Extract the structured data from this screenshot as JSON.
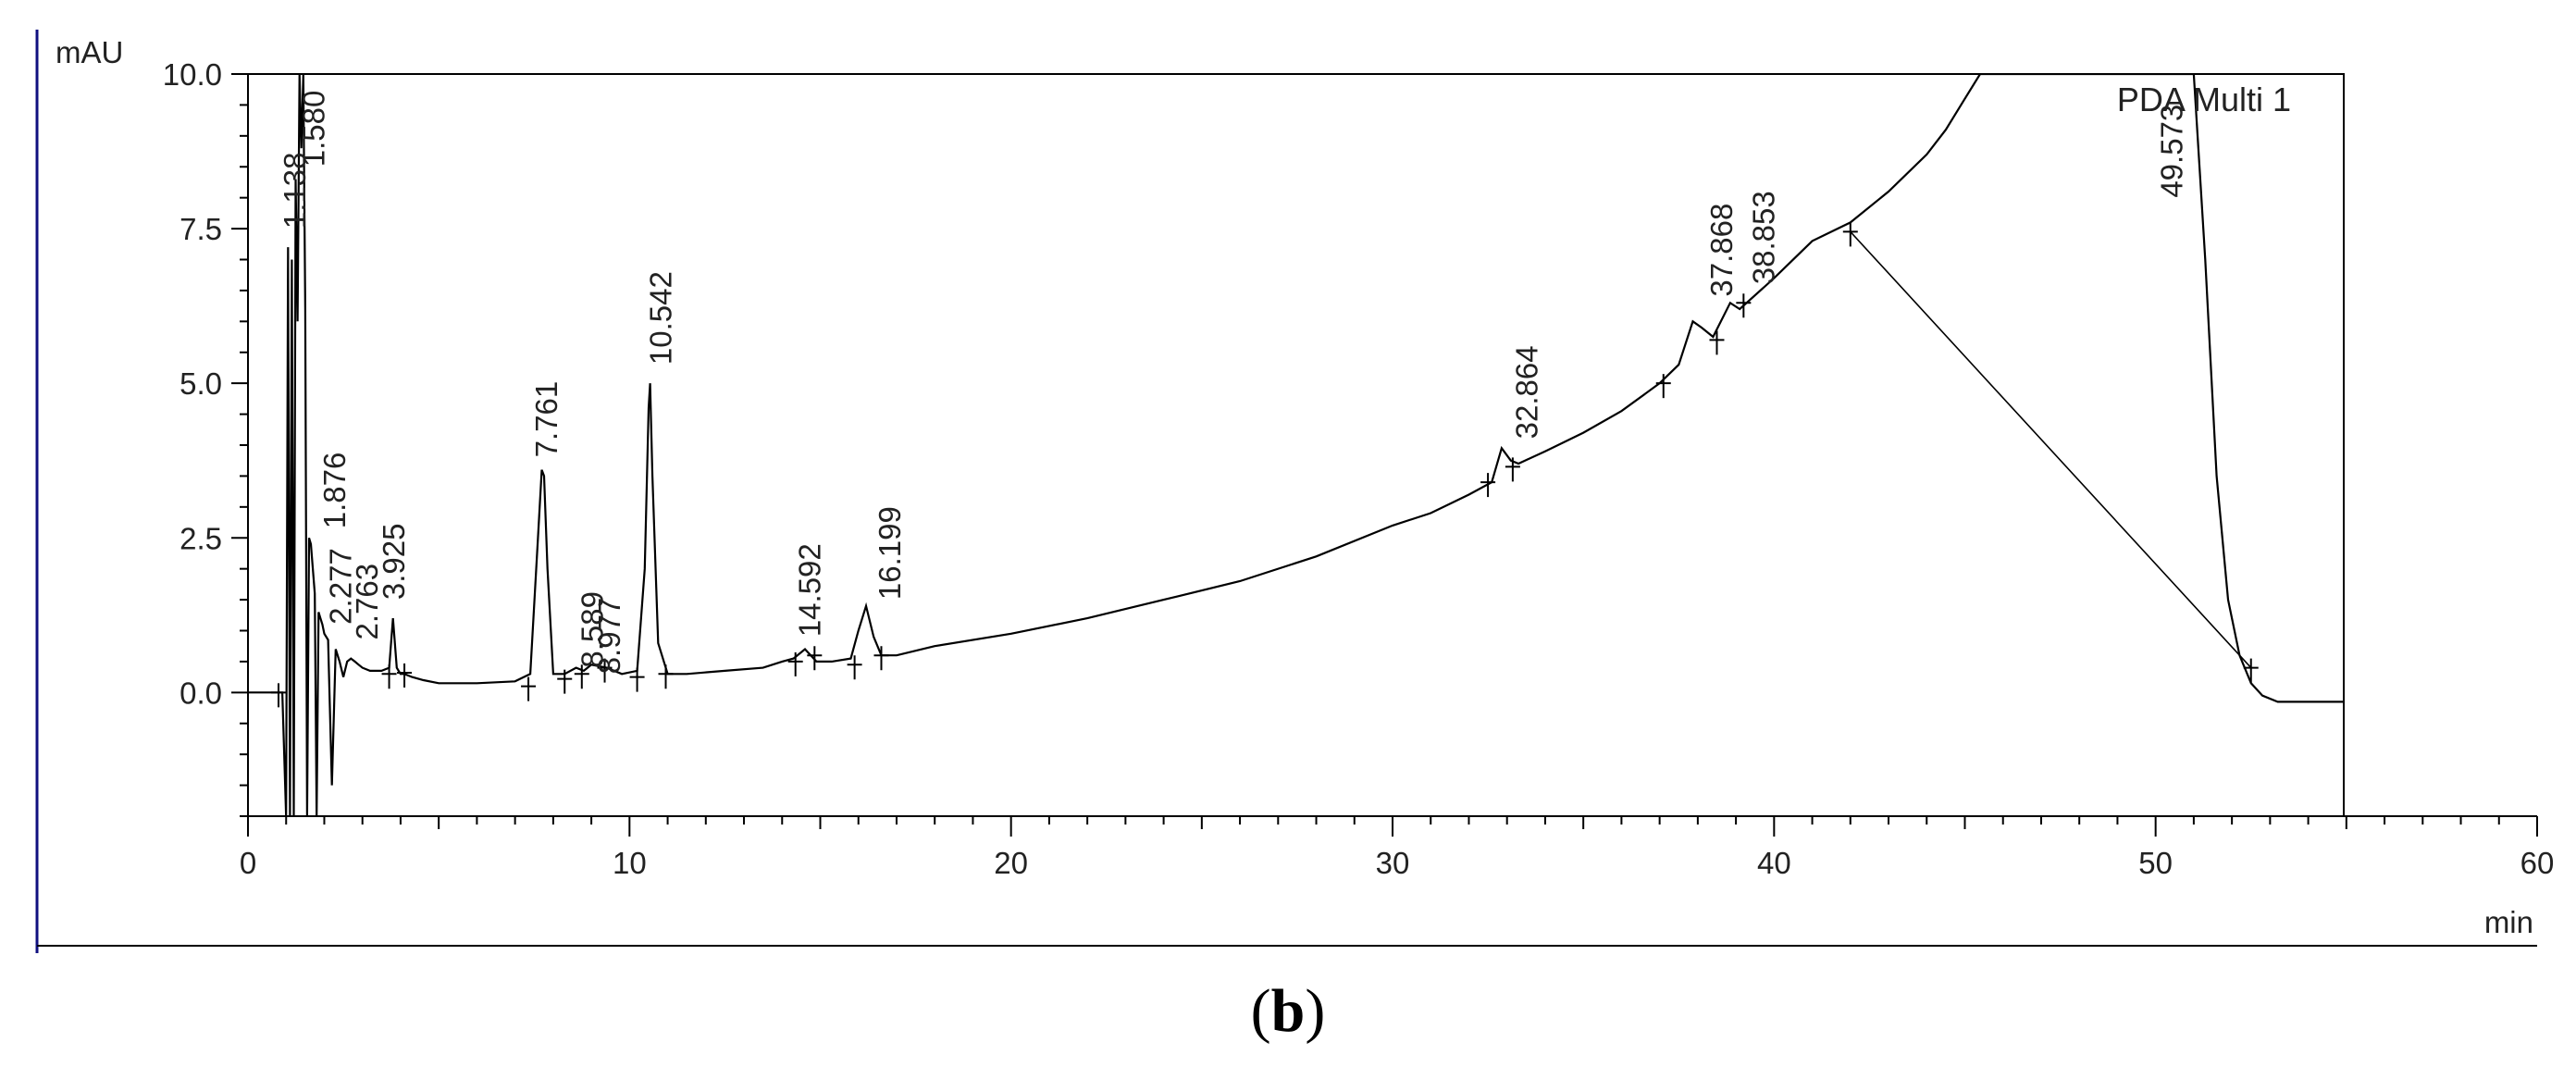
{
  "chart_data": {
    "type": "line",
    "title": "",
    "xlabel": "min",
    "ylabel": "mAU",
    "xlim": [
      0,
      60
    ],
    "ylim": [
      -2.0,
      10.0
    ],
    "x_ticks": [
      "0",
      "10",
      "20",
      "30",
      "40",
      "50",
      "60"
    ],
    "y_ticks": [
      "0.0",
      "2.5",
      "5.0",
      "7.5",
      "10.0"
    ],
    "x_tick_values": [
      0,
      10,
      20,
      30,
      40,
      50,
      60
    ],
    "y_tick_values": [
      0,
      2.5,
      5.0,
      7.5,
      10.0
    ],
    "grid": false,
    "series": [
      {
        "name": "PDA Multi 1",
        "color": "#000000",
        "x": [
          0.0,
          0.9,
          1.0,
          1.05,
          1.1,
          1.15,
          1.2,
          1.25,
          1.3,
          1.35,
          1.4,
          1.45,
          1.5,
          1.55,
          1.6,
          1.65,
          1.7,
          1.75,
          1.8,
          1.85,
          1.9,
          1.95,
          2.0,
          2.1,
          2.2,
          2.3,
          2.4,
          2.5,
          2.6,
          2.7,
          2.8,
          2.9,
          3.0,
          3.2,
          3.5,
          3.7,
          3.8,
          3.9,
          4.0,
          4.1,
          4.3,
          4.6,
          5.0,
          6.0,
          7.0,
          7.4,
          7.6,
          7.7,
          7.76,
          7.85,
          8.0,
          8.3,
          8.6,
          8.8,
          9.0,
          9.4,
          9.8,
          10.2,
          10.4,
          10.5,
          10.54,
          10.6,
          10.75,
          11.0,
          11.5,
          12.5,
          13.5,
          14.0,
          14.3,
          14.6,
          14.9,
          15.3,
          15.8,
          16.0,
          16.2,
          16.4,
          16.6,
          17.0,
          18.0,
          20.0,
          22.0,
          24.0,
          26.0,
          28.0,
          30.0,
          31.0,
          32.0,
          32.6,
          32.86,
          33.1,
          33.3,
          34.0,
          35.0,
          36.0,
          37.0,
          37.5,
          37.87,
          38.1,
          38.4,
          38.85,
          39.1,
          40.0,
          41.0,
          42.0,
          43.0,
          44.0,
          44.5,
          45.0,
          45.4,
          51.0,
          51.3,
          51.6,
          51.9,
          52.2,
          52.5,
          52.8,
          53.2,
          53.6,
          54.0,
          55.0
        ],
        "values": [
          0.0,
          0.0,
          -2.0,
          7.2,
          -2.0,
          7.0,
          -2.0,
          8.3,
          6.0,
          10.0,
          8.8,
          10.0,
          6.2,
          -2.0,
          2.5,
          2.4,
          2.0,
          1.6,
          -2.0,
          1.3,
          1.2,
          1.1,
          0.95,
          0.85,
          -1.5,
          0.7,
          0.5,
          0.25,
          0.5,
          0.55,
          0.5,
          0.45,
          0.4,
          0.35,
          0.35,
          0.4,
          1.2,
          0.4,
          0.3,
          0.3,
          0.25,
          0.2,
          0.15,
          0.15,
          0.18,
          0.3,
          2.5,
          3.6,
          3.5,
          2.0,
          0.3,
          0.3,
          0.4,
          0.35,
          0.45,
          0.4,
          0.3,
          0.35,
          2.0,
          4.6,
          5.0,
          3.5,
          0.8,
          0.3,
          0.3,
          0.35,
          0.4,
          0.5,
          0.55,
          0.7,
          0.5,
          0.5,
          0.55,
          1.0,
          1.4,
          0.9,
          0.6,
          0.6,
          0.75,
          0.95,
          1.2,
          1.5,
          1.8,
          2.2,
          2.7,
          2.9,
          3.2,
          3.4,
          3.95,
          3.75,
          3.7,
          3.9,
          4.2,
          4.55,
          5.0,
          5.3,
          6.0,
          5.9,
          5.75,
          6.3,
          6.2,
          6.7,
          7.3,
          7.6,
          8.1,
          8.7,
          9.1,
          9.6,
          10.0,
          10.0,
          7.0,
          3.5,
          1.5,
          0.6,
          0.15,
          -0.05,
          -0.15,
          -0.15,
          -0.15,
          -0.15
        ]
      }
    ],
    "baselines": [
      {
        "x": [
          42.0,
          52.5
        ],
        "values": [
          7.45,
          0.4
        ]
      }
    ],
    "peak_markers": [
      {
        "x": 0.8,
        "y": 0.0
      },
      {
        "x": 3.7,
        "y": 0.3
      },
      {
        "x": 4.1,
        "y": 0.32
      },
      {
        "x": 7.35,
        "y": 0.1
      },
      {
        "x": 8.3,
        "y": 0.22
      },
      {
        "x": 8.75,
        "y": 0.3
      },
      {
        "x": 9.35,
        "y": 0.4
      },
      {
        "x": 10.2,
        "y": 0.25
      },
      {
        "x": 10.95,
        "y": 0.3
      },
      {
        "x": 14.35,
        "y": 0.5
      },
      {
        "x": 14.85,
        "y": 0.6
      },
      {
        "x": 15.9,
        "y": 0.45
      },
      {
        "x": 16.6,
        "y": 0.6
      },
      {
        "x": 32.5,
        "y": 3.4
      },
      {
        "x": 33.15,
        "y": 3.65
      },
      {
        "x": 37.1,
        "y": 5.0
      },
      {
        "x": 38.5,
        "y": 5.7
      },
      {
        "x": 39.2,
        "y": 6.3
      },
      {
        "x": 42.0,
        "y": 7.45
      },
      {
        "x": 52.5,
        "y": 0.4
      }
    ],
    "peak_labels": [
      {
        "text": "1.138",
        "x": 1.5,
        "y": 7.5
      },
      {
        "text": "1.580",
        "x": 2.0,
        "y": 8.5
      },
      {
        "text": "1.876",
        "x": 2.55,
        "y": 2.65
      },
      {
        "text": "2.277",
        "x": 2.7,
        "y": 1.1
      },
      {
        "text": "2.763",
        "x": 3.4,
        "y": 0.85
      },
      {
        "text": "3.925",
        "x": 4.1,
        "y": 1.5
      },
      {
        "text": "7.761",
        "x": 8.1,
        "y": 3.8
      },
      {
        "text": "8.589",
        "x": 9.3,
        "y": 0.4
      },
      {
        "text": "8.977",
        "x": 9.75,
        "y": 0.3
      },
      {
        "text": "10.542",
        "x": 11.1,
        "y": 5.3
      },
      {
        "text": "14.592",
        "x": 15.0,
        "y": 0.9
      },
      {
        "text": "16.199",
        "x": 17.1,
        "y": 1.5
      },
      {
        "text": "32.864",
        "x": 33.8,
        "y": 4.1
      },
      {
        "text": "37.868",
        "x": 38.9,
        "y": 6.4
      },
      {
        "text": "38.853",
        "x": 40.0,
        "y": 6.6
      },
      {
        "text": "49.573",
        "x": 50.7,
        "y": 8.0
      }
    ],
    "legend": "PDA Multi 1",
    "legend_position": "top-right",
    "panel_label": {
      "open": "(",
      "letter": "b",
      "close": ")"
    }
  }
}
